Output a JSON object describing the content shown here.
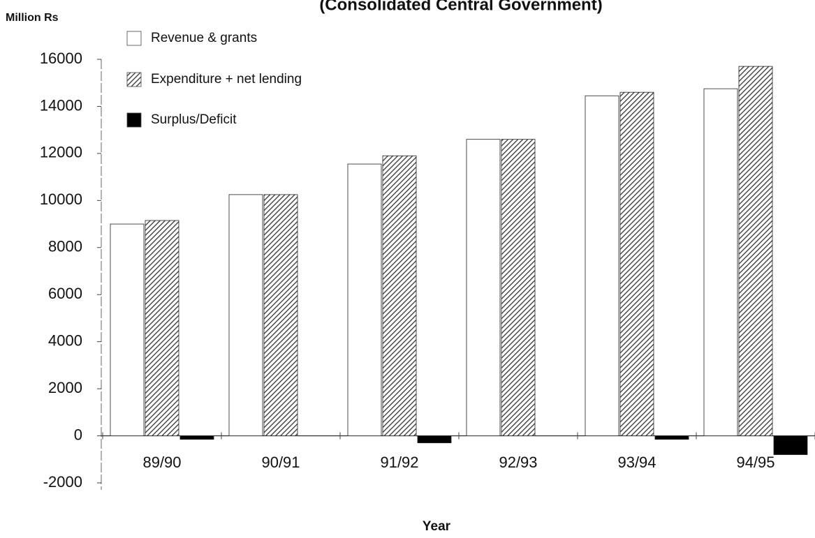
{
  "chart_data": {
    "type": "bar",
    "subtitle": "(Consolidated Central Government)",
    "y_label": "Million Rs",
    "x_label": "Year",
    "categories": [
      "89/90",
      "90/91",
      "91/92",
      "92/93",
      "93/94",
      "94/95"
    ],
    "series": [
      {
        "name": "Revenue & grants",
        "color": "#ffffff",
        "values": [
          9000,
          10250,
          11550,
          12600,
          14450,
          14750
        ]
      },
      {
        "name": "Expenditure + net lending",
        "color": "#444444",
        "hatch": true,
        "values": [
          9150,
          10250,
          11900,
          12600,
          14600,
          15700
        ]
      },
      {
        "name": "Surplus/Deficit",
        "color": "#000000",
        "values": [
          -150,
          0,
          -300,
          0,
          -150,
          -800
        ]
      }
    ],
    "ylim": [
      -2000,
      16000
    ],
    "yticks": [
      -2000,
      0,
      2000,
      4000,
      6000,
      8000,
      10000,
      12000,
      14000,
      16000
    ],
    "legend": "top-left"
  }
}
